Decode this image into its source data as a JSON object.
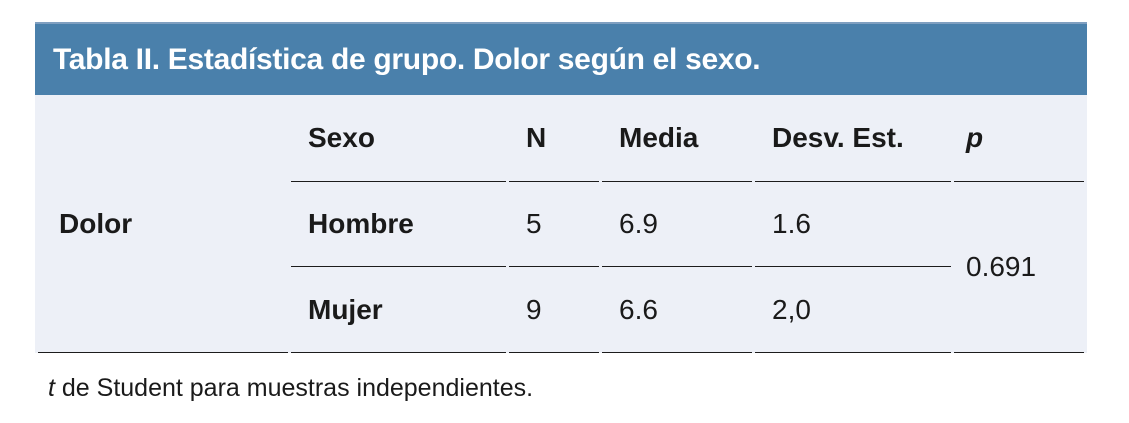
{
  "title": "Tabla II. Estadística de grupo. Dolor según el sexo.",
  "colors": {
    "header_bg": "#4a80ab",
    "header_top_edge": "#7f9fc0",
    "body_bg": "#edf0f7",
    "text": "#1a1a1a",
    "rule": "#1c1c1c",
    "title_text": "#ffffff"
  },
  "table": {
    "row_group_label": "Dolor",
    "columns": {
      "sexo": "Sexo",
      "n": "N",
      "media": "Media",
      "desv": "Desv. Est.",
      "p": "p"
    },
    "rows": [
      {
        "sexo": "Hombre",
        "n": "5",
        "media": "6.9",
        "desv": "1.6"
      },
      {
        "sexo": "Mujer",
        "n": "9",
        "media": "6.6",
        "desv": "2,0"
      }
    ],
    "p_value": "0.691"
  },
  "footnote": {
    "italic_prefix": "t",
    "rest": " de Student para muestras independientes."
  },
  "chart_data": {
    "type": "table",
    "title": "Tabla II. Estadística de grupo. Dolor según el sexo.",
    "row_group": "Dolor",
    "columns": [
      "Sexo",
      "N",
      "Media",
      "Desv. Est.",
      "p"
    ],
    "rows": [
      [
        "Hombre",
        5,
        6.9,
        1.6,
        0.691
      ],
      [
        "Mujer",
        9,
        6.6,
        "2,0",
        0.691
      ]
    ],
    "p_value": 0.691,
    "footnote": "t de Student para muestras independientes."
  }
}
